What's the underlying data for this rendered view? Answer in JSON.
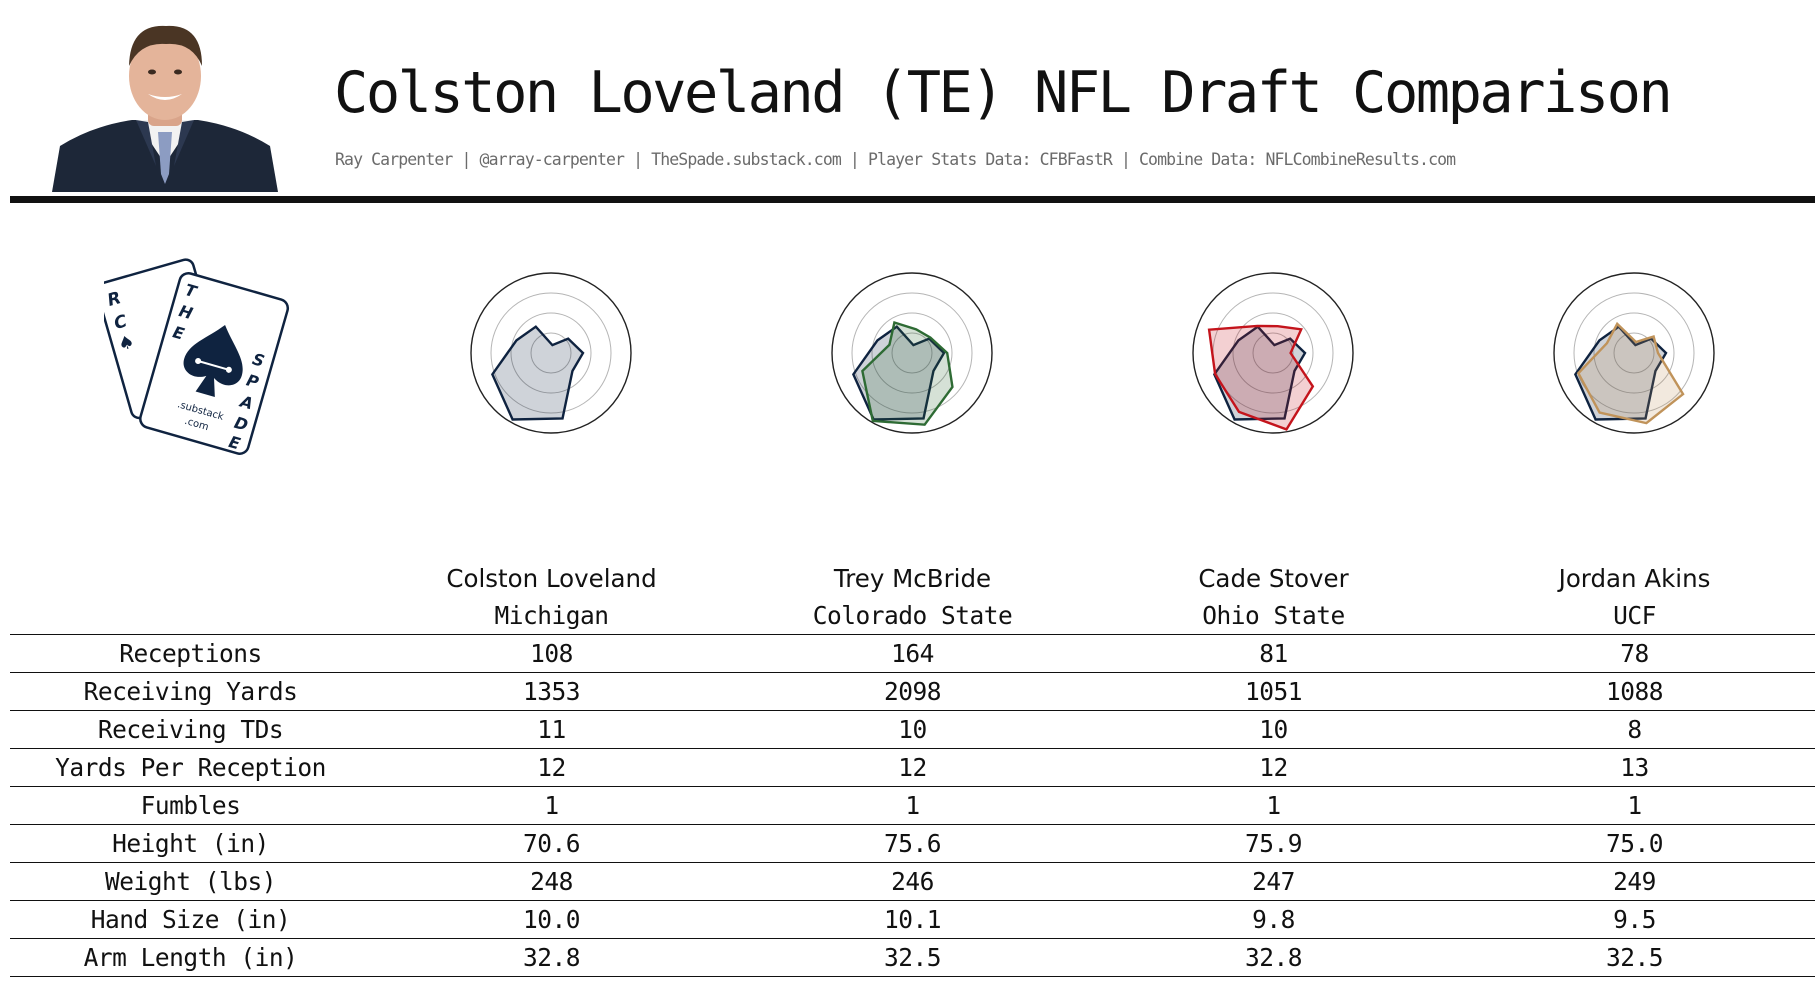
{
  "header": {
    "title": "Colston Loveland (TE) NFL Draft Comparison",
    "subtitle": "Ray Carpenter | @array-carpenter | TheSpade.substack.com | Player Stats Data: CFBFastR | Combine Data: NFLCombineResults.com"
  },
  "logo": {
    "back_card_letters": [
      "R",
      "C",
      "♠"
    ],
    "front_card_letters": [
      "T",
      "H",
      "E",
      "S",
      "P",
      "A",
      "D",
      "E"
    ],
    "card_text": [
      ".substack",
      ".com"
    ],
    "color": "#0f2340"
  },
  "colors": {
    "base_player": "#0f2340",
    "mcbride": "#2e6b34",
    "stover": "#c4141c",
    "akins": "#c0935a"
  },
  "chart_data": [
    {
      "type": "radar",
      "comparison": "Colston Loveland",
      "axes_count": 9,
      "series": [
        {
          "values": [
            0.4,
            0.28,
            0.1,
            0.38,
            0.46,
            0.78,
            0.96,
            0.83,
            0.35
          ],
          "color": "#0f2340"
        }
      ]
    },
    {
      "type": "radar",
      "comparison": "Trey McBride",
      "axes_count": 9,
      "series": [
        {
          "values": [
            0.4,
            0.28,
            0.1,
            0.38,
            0.46,
            0.78,
            0.96,
            0.83,
            0.35
          ],
          "color": "#0f2340"
        },
        {
          "values": [
            0.44,
            0.3,
            0.3,
            0.44,
            0.3,
            0.66,
            0.98,
            0.91,
            0.66
          ],
          "color": "#2e6b34"
        }
      ]
    },
    {
      "type": "radar",
      "comparison": "Cade Stover",
      "axes_count": 9,
      "series": [
        {
          "values": [
            0.4,
            0.28,
            0.1,
            0.38,
            0.46,
            0.78,
            0.96,
            0.83,
            0.35
          ],
          "color": "#0f2340"
        },
        {
          "values": [
            0.22,
            0.46,
            0.34,
            0.39,
            0.85,
            0.77,
            0.85,
            0.97,
            0.65
          ],
          "color": "#c4141c"
        }
      ]
    },
    {
      "type": "radar",
      "comparison": "Jordan Akins",
      "axes_count": 9,
      "series": [
        {
          "values": [
            0.4,
            0.28,
            0.1,
            0.38,
            0.46,
            0.78,
            0.96,
            0.83,
            0.35
          ],
          "color": "#0f2340"
        },
        {
          "values": [
            0.3,
            0.32,
            0.14,
            0.42,
            0.36,
            0.74,
            0.86,
            0.89,
            0.8
          ],
          "color": "#c0935a"
        }
      ]
    },
    {
      "type": "table",
      "columns": [
        "Colston Loveland",
        "Trey McBride",
        "Cade Stover",
        "Jordan Akins"
      ],
      "schools": [
        "Michigan",
        "Colorado State",
        "Ohio State",
        "UCF"
      ],
      "rows": [
        {
          "label": "Receptions",
          "values": [
            "108",
            "164",
            "81",
            "78"
          ]
        },
        {
          "label": "Receiving Yards",
          "values": [
            "1353",
            "2098",
            "1051",
            "1088"
          ]
        },
        {
          "label": "Receiving TDs",
          "values": [
            "11",
            "10",
            "10",
            "8"
          ]
        },
        {
          "label": "Yards Per Reception",
          "values": [
            "12",
            "12",
            "12",
            "13"
          ]
        },
        {
          "label": "Fumbles",
          "values": [
            "1",
            "1",
            "1",
            "1"
          ]
        },
        {
          "label": "Height (in)",
          "values": [
            "70.6",
            "75.6",
            "75.9",
            "75.0"
          ]
        },
        {
          "label": "Weight (lbs)",
          "values": [
            "248",
            "246",
            "247",
            "249"
          ]
        },
        {
          "label": "Hand Size (in)",
          "values": [
            "10.0",
            "10.1",
            "9.8",
            "9.5"
          ]
        },
        {
          "label": "Arm Length (in)",
          "values": [
            "32.8",
            "32.5",
            "32.8",
            "32.5"
          ]
        }
      ]
    }
  ]
}
